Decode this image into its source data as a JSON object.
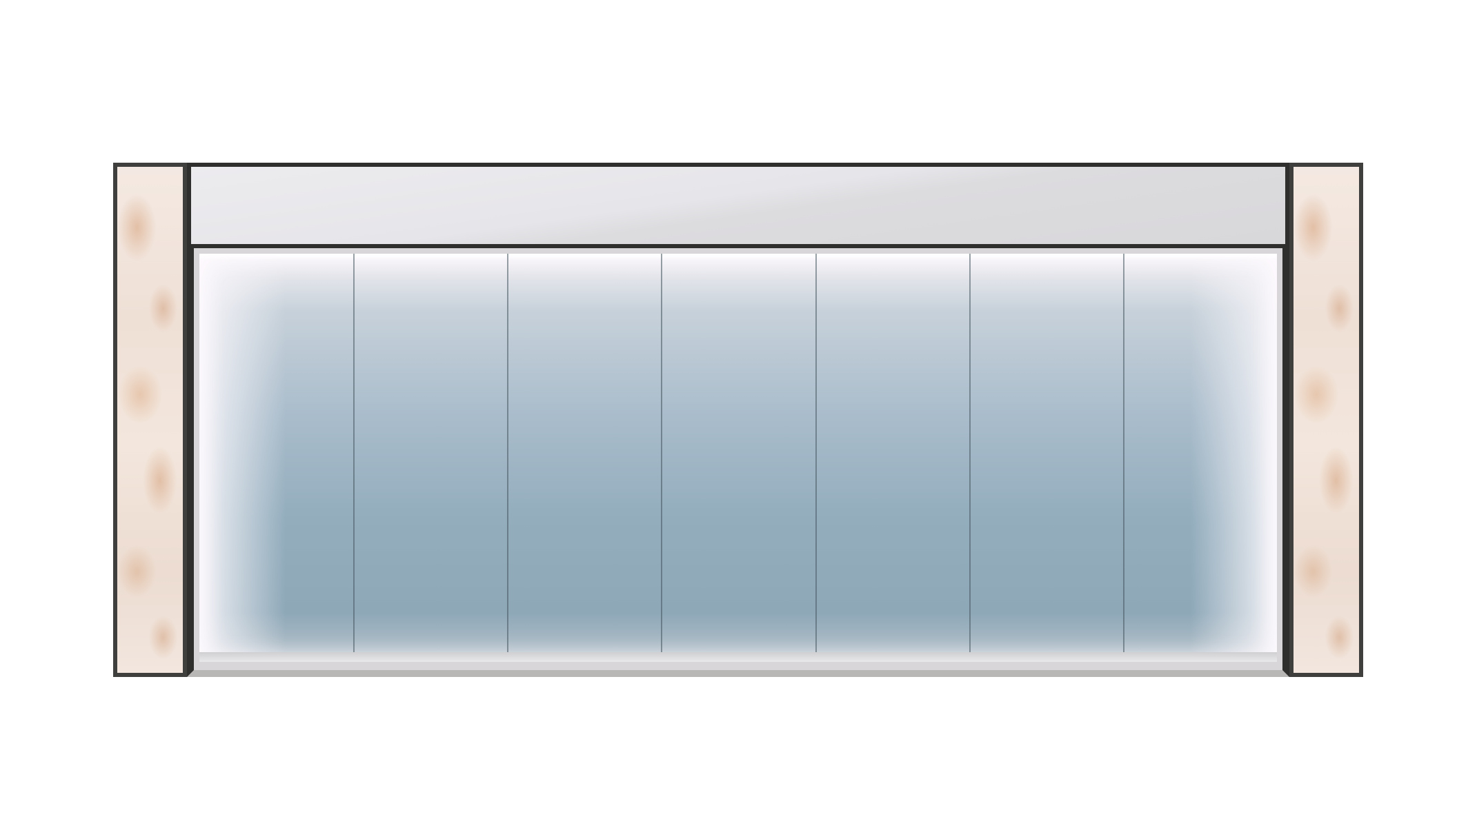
{
  "scene": {
    "subject": "storefront",
    "panels": 7,
    "colors": {
      "background": "#ffffff",
      "frame": "#2f302e",
      "glass": "#93adbd",
      "marble": "#efe0d6",
      "header": "#e6e5e9"
    }
  }
}
